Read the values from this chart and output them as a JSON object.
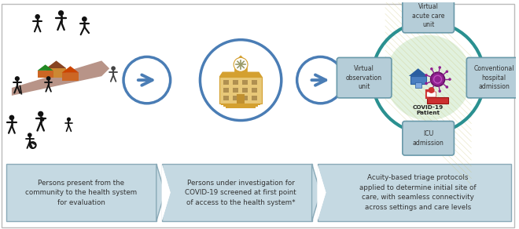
{
  "bg_color": "#ffffff",
  "border_color": "#bbbbbb",
  "arrow_circle_color": "#4a7db5",
  "banner_bg": "#c5d9e2",
  "banner_border": "#8aaab8",
  "teal_circle": "#2a9090",
  "light_green_bg": "#d5ecd0",
  "outcome_box_bg": "#b5cdd8",
  "outcome_box_border": "#6a9aaa",
  "text_color": "#333333",
  "hosp_wall": "#e8c878",
  "hosp_roof": "#d4a030",
  "hosp_win": "#b09050",
  "hosp_door": "#c09030",
  "house_blue": "#4a7ec0",
  "house_blue_dark": "#2a5ea0",
  "virus_purple": "#902090",
  "virus_dark": "#601060",
  "bed_red": "#cc3030",
  "person_dark": "#111111",
  "road_brown": "#a07060",
  "house_orange": "#cc6624",
  "house_green_roof": "#228822",
  "house_brown_roof": "#884422",
  "texts": {
    "banner1": "Persons present from the\ncommunity to the health system\nfor evaluation",
    "banner2": "Persons under investigation for\nCOVID-19 screened at first point\nof access to the health system*",
    "banner3": "Acuity-based triage protocols\napplied to determine initial site of\ncare, with seamless connectivity\nacross settings and care levels",
    "virtual_acute": "Virtual\nacute care\nunit",
    "virtual_obs": "Virtual\nobservation\nunit",
    "conventional": "Conventional\nhospital\nadmission",
    "icu": "ICU\nadmission",
    "covid_center": "COVID-19\nPatient"
  },
  "figsize": [
    6.6,
    2.92
  ],
  "dpi": 100
}
